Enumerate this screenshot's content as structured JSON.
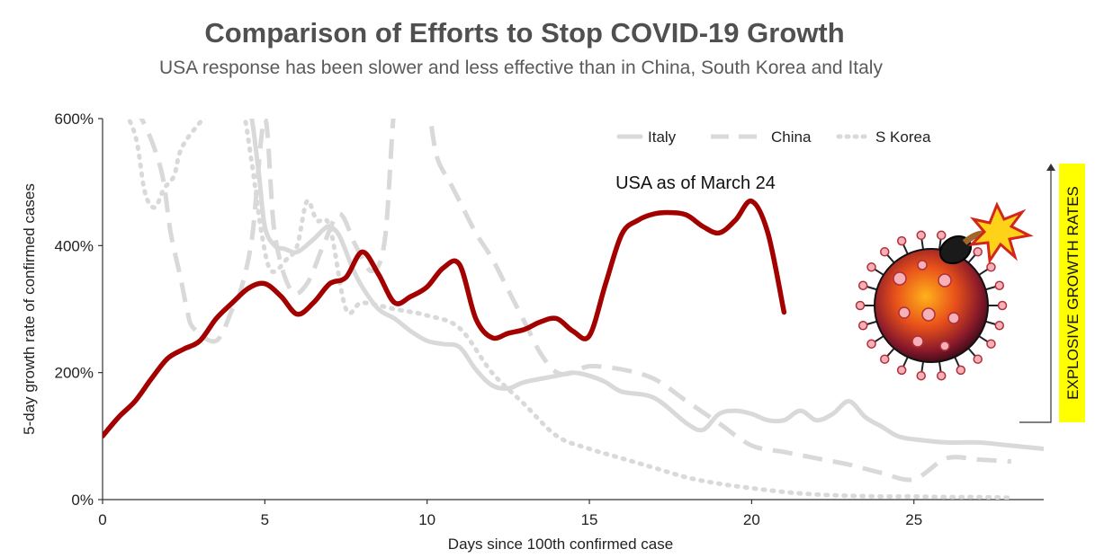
{
  "chart_data": {
    "type": "line",
    "title": "Comparison of Efforts to Stop COVID-19 Growth",
    "subtitle": "USA response has been slower and less effective than in China, South Korea and Italy",
    "xlabel": "Days since 100th confirmed case",
    "ylabel": "5-day growth rate of confirmed cases",
    "xlim": [
      0,
      29
    ],
    "ylim": [
      0,
      600
    ],
    "xticks": [
      "0",
      "5",
      "10",
      "15",
      "20",
      "25"
    ],
    "yticks": [
      "0%",
      "200%",
      "400%",
      "600%"
    ],
    "legend_position": "top-right",
    "annotation": "USA as of March 24",
    "side_label": "EXPLOSIVE GROWTH RATES",
    "colors": {
      "usa": "#a30000",
      "others": "#d9d9d9",
      "highlight": "#ffff00",
      "text": "#505050"
    },
    "series": [
      {
        "name": "Italy",
        "style": "solid",
        "x": [
          0.3,
          1,
          2,
          3,
          4,
          4.5,
          4.8,
          5,
          5.3,
          5.6,
          6,
          6.5,
          6.8,
          7,
          7.3,
          7.7,
          8,
          8.5,
          9,
          9.5,
          10,
          10.5,
          11,
          11.5,
          12,
          12.5,
          13,
          14,
          14.5,
          15,
          15.5,
          16,
          17,
          18,
          18.5,
          19,
          19.5,
          20,
          20.5,
          21,
          21.5,
          22,
          22.5,
          23,
          23.5,
          24,
          24.5,
          25,
          26,
          27,
          28,
          29
        ],
        "y": [
          620,
          620,
          620,
          620,
          620,
          620,
          520,
          430,
          400,
          395,
          390,
          410,
          425,
          430,
          415,
          365,
          335,
          300,
          285,
          265,
          250,
          245,
          240,
          205,
          180,
          175,
          185,
          195,
          200,
          195,
          185,
          170,
          160,
          120,
          110,
          135,
          140,
          135,
          125,
          125,
          140,
          125,
          135,
          155,
          130,
          115,
          100,
          95,
          90,
          90,
          85,
          80
        ]
      },
      {
        "name": "China",
        "style": "dashed",
        "x": [
          0,
          0.7,
          1.2,
          1.8,
          2.1,
          2.4,
          2.6,
          2.8,
          3.5,
          4,
          4.2,
          4.6,
          5,
          5.3,
          5.8,
          6.3,
          6.8,
          7.3,
          7.8,
          8.3,
          8.7,
          9,
          9.3,
          9.6,
          10,
          10.3,
          10.7,
          11,
          11.5,
          12,
          12.5,
          13,
          13.5,
          14,
          14.5,
          15,
          16,
          17,
          18,
          19,
          20,
          21,
          22,
          23,
          24,
          25,
          26,
          27,
          28
        ],
        "y": [
          620,
          620,
          600,
          520,
          420,
          350,
          300,
          270,
          250,
          300,
          320,
          410,
          600,
          420,
          330,
          340,
          400,
          450,
          400,
          360,
          410,
          620,
          620,
          620,
          620,
          540,
          500,
          470,
          420,
          380,
          330,
          280,
          230,
          200,
          200,
          210,
          205,
          190,
          155,
          120,
          85,
          75,
          65,
          55,
          42,
          32,
          65,
          63,
          60
        ]
      },
      {
        "name": "S Korea",
        "style": "dotted",
        "x": [
          0,
          0.5,
          1,
          1.3,
          1.6,
          1.9,
          2.2,
          2.5,
          3.5,
          4,
          4.3,
          4.6,
          4.9,
          5.2,
          5.7,
          6,
          6.3,
          6.6,
          7,
          7.5,
          8,
          9,
          10,
          11,
          12,
          13,
          14,
          15,
          16,
          17,
          18,
          19,
          20,
          21,
          22,
          23,
          24,
          25,
          26,
          27,
          28
        ],
        "y": [
          620,
          620,
          575,
          485,
          460,
          490,
          510,
          560,
          620,
          620,
          620,
          530,
          420,
          360,
          380,
          400,
          470,
          440,
          430,
          300,
          310,
          300,
          290,
          270,
          200,
          150,
          100,
          80,
          65,
          50,
          35,
          25,
          18,
          12,
          8,
          6,
          5,
          5,
          4,
          4,
          3
        ]
      },
      {
        "name": "USA",
        "style": "solid-bold",
        "x": [
          0,
          0.5,
          1,
          1.5,
          2,
          2.5,
          3,
          3.5,
          4,
          4.5,
          5,
          5.5,
          6,
          6.5,
          7,
          7.5,
          8,
          8.5,
          9,
          9.5,
          10,
          10.5,
          11,
          11.5,
          12,
          12.5,
          13,
          13.5,
          14,
          14.5,
          15,
          15.5,
          16,
          16.5,
          17,
          17.5,
          18,
          18.5,
          19,
          19.5,
          20,
          20.5,
          21
        ],
        "y": [
          100,
          130,
          155,
          190,
          222,
          237,
          250,
          285,
          310,
          333,
          340,
          320,
          292,
          310,
          340,
          350,
          390,
          355,
          310,
          320,
          335,
          365,
          370,
          285,
          255,
          262,
          268,
          280,
          285,
          265,
          258,
          340,
          418,
          440,
          450,
          452,
          448,
          430,
          420,
          440,
          470,
          420,
          295
        ]
      }
    ]
  }
}
